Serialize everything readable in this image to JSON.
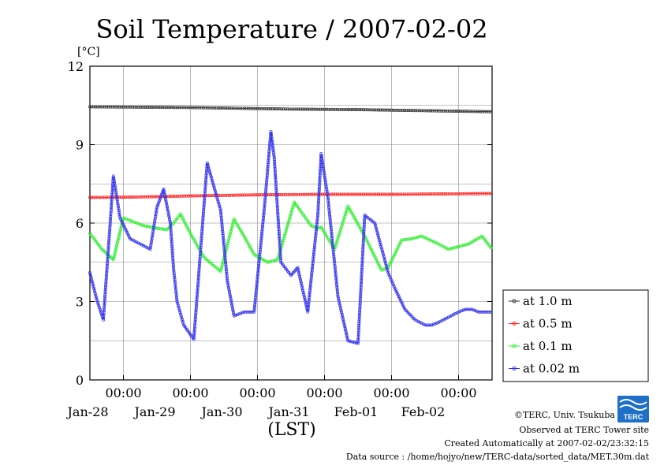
{
  "chart_data": {
    "type": "line",
    "title": "Soil Temperature / 2007-02-02",
    "y_unit": "[°C]",
    "xlabel": "(LST)",
    "ylim": [
      0,
      12
    ],
    "y_ticks": [
      "0",
      "3",
      "6",
      "9",
      "12"
    ],
    "x_range_days": [
      -0.5,
      5.5
    ],
    "x_ticks": [
      {
        "day": 0,
        "time": "00:00",
        "date": "Jan-28"
      },
      {
        "day": 1,
        "time": "00:00",
        "date": "Jan-29"
      },
      {
        "day": 2,
        "time": "00:00",
        "date": "Jan-30"
      },
      {
        "day": 3,
        "time": "00:00",
        "date": "Jan-31"
      },
      {
        "day": 4,
        "time": "00:00",
        "date": "Feb-01"
      },
      {
        "day": 5,
        "time": "00:00",
        "date": "Feb-02"
      }
    ],
    "grid": true,
    "legend_position": "right",
    "series": [
      {
        "name": "at 1.0 m",
        "color": "#333333",
        "x": [
          -0.5,
          0,
          0.5,
          1,
          1.5,
          2,
          2.5,
          3,
          3.5,
          4,
          4.5,
          5,
          5.5
        ],
        "y": [
          10.45,
          10.44,
          10.43,
          10.42,
          10.4,
          10.38,
          10.36,
          10.35,
          10.34,
          10.32,
          10.3,
          10.28,
          10.26
        ]
      },
      {
        "name": "at 0.5 m",
        "color": "#ff2222",
        "x": [
          -0.5,
          0,
          0.5,
          1,
          1.5,
          2,
          2.5,
          3,
          3.5,
          4,
          4.5,
          5,
          5.5
        ],
        "y": [
          6.98,
          6.99,
          7.01,
          7.04,
          7.06,
          7.08,
          7.09,
          7.1,
          7.1,
          7.1,
          7.11,
          7.12,
          7.13
        ]
      },
      {
        "name": "at 0.1 m",
        "color": "#33ee33",
        "x": [
          -0.5,
          -0.32,
          -0.15,
          0,
          0.3,
          0.5,
          0.65,
          0.75,
          0.85,
          1.0,
          1.2,
          1.45,
          1.65,
          1.8,
          1.95,
          2.15,
          2.3,
          2.55,
          2.8,
          2.9,
          2.95,
          3.15,
          3.35,
          3.6,
          3.85,
          3.95,
          4.15,
          4.3,
          4.45,
          4.7,
          4.85,
          5.0,
          5.15,
          5.35,
          5.5
        ],
        "y": [
          5.6,
          5.0,
          4.6,
          6.2,
          5.9,
          5.8,
          5.75,
          6.0,
          6.35,
          5.6,
          4.7,
          4.15,
          6.15,
          5.5,
          4.8,
          4.5,
          4.6,
          6.8,
          5.9,
          5.8,
          5.85,
          5.0,
          6.65,
          5.5,
          4.2,
          4.3,
          5.35,
          5.4,
          5.5,
          5.2,
          5.0,
          5.1,
          5.2,
          5.5,
          5.0
        ]
      },
      {
        "name": "at 0.02 m",
        "color": "#3333ee",
        "x": [
          -0.5,
          -0.4,
          -0.3,
          -0.2,
          -0.15,
          -0.05,
          0.1,
          0.25,
          0.4,
          0.5,
          0.6,
          0.7,
          0.75,
          0.8,
          0.9,
          1.05,
          1.25,
          1.45,
          1.55,
          1.65,
          1.8,
          1.95,
          2.1,
          2.2,
          2.25,
          2.35,
          2.5,
          2.6,
          2.75,
          2.9,
          2.95,
          3.05,
          3.2,
          3.35,
          3.5,
          3.6,
          3.75,
          3.95,
          4.05,
          4.2,
          4.35,
          4.5,
          4.6,
          4.7,
          4.85,
          5.0,
          5.1,
          5.2,
          5.3,
          5.4,
          5.5
        ],
        "y": [
          4.1,
          3.1,
          2.3,
          5.9,
          7.8,
          6.2,
          5.4,
          5.2,
          5.0,
          6.6,
          7.3,
          6.0,
          4.2,
          3.0,
          2.1,
          1.55,
          8.3,
          6.5,
          3.8,
          2.45,
          2.6,
          2.6,
          6.5,
          9.5,
          8.5,
          4.5,
          4.0,
          4.3,
          2.6,
          6.3,
          8.65,
          7.0,
          3.2,
          1.5,
          1.4,
          6.3,
          6.0,
          4.1,
          3.5,
          2.7,
          2.3,
          2.1,
          2.1,
          2.2,
          2.4,
          2.6,
          2.7,
          2.7,
          2.6,
          2.6,
          2.6
        ]
      }
    ]
  },
  "footer": {
    "copyright": "©TERC, Univ. Tsukuba",
    "site": "Observed at TERC Tower site",
    "created": "Created Automatically at 2007-02-02/23:32:15",
    "source": "Data source : /home/hojyo/new/TERC-data/sorted_data/MET.30m.dat"
  },
  "logo": {
    "text": "TERC",
    "color": "#1e6fc8"
  }
}
